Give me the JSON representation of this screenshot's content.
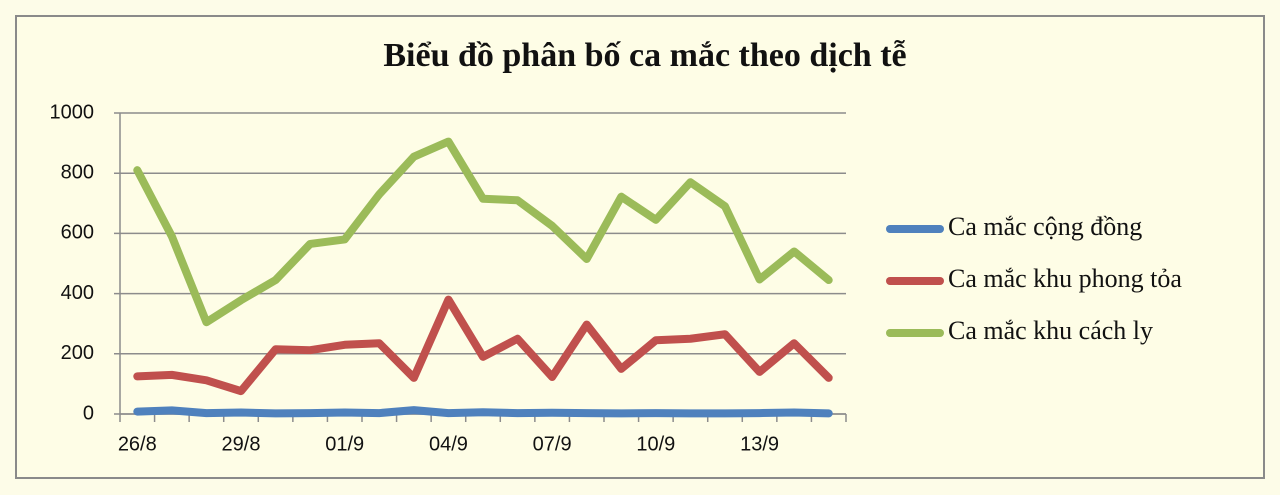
{
  "chart_data": {
    "type": "line",
    "title": "Biểu đồ phân bố ca mắc theo dịch tễ",
    "categories": [
      "26/8",
      null,
      null,
      "29/8",
      null,
      null,
      "01/9",
      null,
      null,
      "04/9",
      null,
      null,
      "07/9",
      null,
      null,
      "10/9",
      null,
      null,
      "13/9",
      null,
      null
    ],
    "series": [
      {
        "name": "Ca mắc cộng đồng",
        "color": "#4f81bd",
        "values": [
          8,
          12,
          3,
          5,
          2,
          3,
          5,
          3,
          13,
          3,
          6,
          3,
          4,
          3,
          2,
          3,
          2,
          2,
          3,
          5,
          2
        ]
      },
      {
        "name": "Ca mắc khu phong tỏa",
        "color": "#c0504d",
        "values": [
          125,
          130,
          112,
          76,
          215,
          212,
          230,
          235,
          120,
          380,
          190,
          250,
          123,
          297,
          150,
          245,
          250,
          265,
          140,
          235,
          120
        ]
      },
      {
        "name": "Ca mắc khu cách ly",
        "color": "#9bbb59",
        "values": [
          810,
          590,
          305,
          378,
          445,
          565,
          580,
          730,
          855,
          905,
          715,
          710,
          625,
          515,
          722,
          645,
          770,
          690,
          447,
          540,
          445
        ]
      }
    ],
    "ylim": [
      0,
      1000
    ],
    "yticks": [
      0,
      200,
      400,
      600,
      800,
      1000
    ],
    "grid": true
  }
}
